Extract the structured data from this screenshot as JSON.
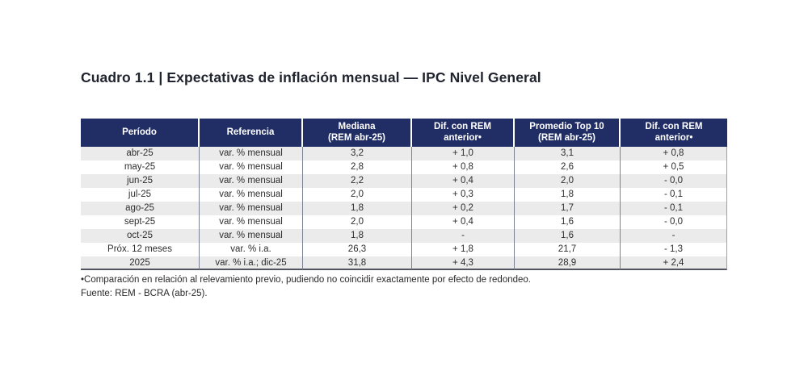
{
  "page": {
    "title": "Cuadro 1.1 | Expectativas de inflación mensual — IPC Nivel General"
  },
  "table": {
    "columns": [
      {
        "line1": "Período",
        "line2": ""
      },
      {
        "line1": "Referencia",
        "line2": ""
      },
      {
        "line1": "Mediana",
        "line2": "(REM abr-25)"
      },
      {
        "line1": "Dif. con REM",
        "line2": "anterior•"
      },
      {
        "line1": "Promedio Top 10",
        "line2": "(REM abr-25)"
      },
      {
        "line1": "Dif. con REM",
        "line2": "anterior•"
      }
    ],
    "rows": [
      [
        "abr-25",
        "var. % mensual",
        "3,2",
        "+ 1,0",
        "3,1",
        "+ 0,8"
      ],
      [
        "may-25",
        "var. % mensual",
        "2,8",
        "+ 0,8",
        "2,6",
        "+ 0,5"
      ],
      [
        "jun-25",
        "var. % mensual",
        "2,2",
        "+ 0,4",
        "2,0",
        "- 0,0"
      ],
      [
        "jul-25",
        "var. % mensual",
        "2,0",
        "+ 0,3",
        "1,8",
        "- 0,1"
      ],
      [
        "ago-25",
        "var. % mensual",
        "1,8",
        "+ 0,2",
        "1,7",
        "- 0,1"
      ],
      [
        "sept-25",
        "var. % mensual",
        "2,0",
        "+ 0,4",
        "1,6",
        "- 0,0"
      ],
      [
        "oct-25",
        "var. % mensual",
        "1,8",
        "-",
        "1,6",
        "-"
      ],
      [
        "Próx. 12 meses",
        "var. % i.a.",
        "26,3",
        "+ 1,8",
        "21,7",
        "- 1,3"
      ],
      [
        "2025",
        "var. % i.a.; dic-25",
        "31,8",
        "+ 4,3",
        "28,9",
        "+ 2,4"
      ]
    ]
  },
  "footnotes": {
    "note": "•Comparación en relación al relevamiento previo, pudiendo no coincidir exactamente por efecto de redondeo.",
    "source": "Fuente: REM - BCRA (abr-25)."
  },
  "colors": {
    "header_bg": "#212e66",
    "stripe": "#ebebeb",
    "title_text": "#20242e"
  }
}
